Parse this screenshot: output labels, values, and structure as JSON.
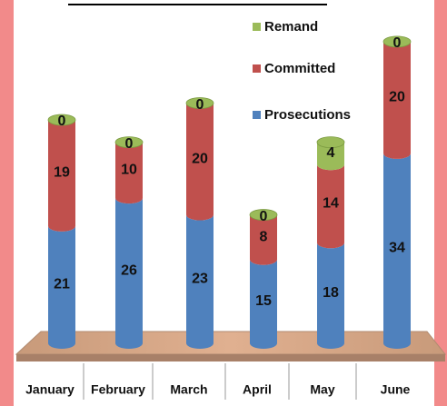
{
  "chart_data": {
    "type": "stacked-cylinder",
    "categories": [
      "January",
      "February",
      "March",
      "April",
      "May",
      "June"
    ],
    "series": [
      {
        "name": "Prosecutions",
        "color": "#4f81bd",
        "values": [
          21,
          26,
          23,
          15,
          18,
          34
        ]
      },
      {
        "name": "Committed",
        "color": "#c0504d",
        "values": [
          19,
          10,
          20,
          8,
          14,
          20
        ]
      },
      {
        "name": "Remand",
        "color": "#9bbb59",
        "values": [
          0,
          0,
          0,
          0,
          4,
          0
        ]
      }
    ]
  }
}
